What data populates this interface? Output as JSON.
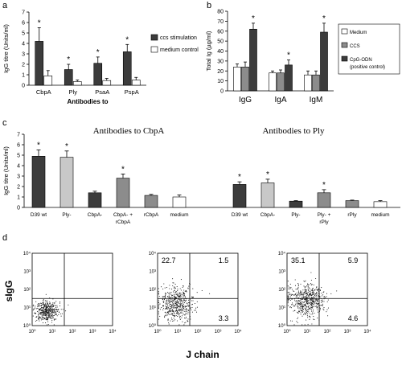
{
  "panel_labels": {
    "a": "a",
    "b": "b",
    "c": "c",
    "d": "d"
  },
  "colors": {
    "dark": "#3c3c3c",
    "white": "#ffffff",
    "light_gray": "#c8c8c8",
    "mid_gray": "#8c8c8c",
    "dots": "#1a1a1a"
  },
  "legend_a": {
    "item1": "ccs stimulation",
    "item2": "medium control"
  },
  "legend_b": {
    "item1": "Medium",
    "item2": "CCS",
    "item3": "CpG-ODN",
    "item4": "(positive control)"
  },
  "panel_c": {
    "title_left": "Antibodies to CbpA",
    "title_right": "Antibodies to Ply"
  },
  "panel_d": {
    "ylabel": "sIgG",
    "xlabel": "J chain"
  },
  "chart_data": [
    {
      "type": "bar",
      "panel": "a",
      "ylabel": "IgG titre (Units/ml)",
      "xlabel": "Antibodies to",
      "categories": [
        "CbpA",
        "Ply",
        "PsaA",
        "PspA"
      ],
      "ylim": [
        0,
        7
      ],
      "yticks": [
        "0",
        "1",
        "2",
        "3",
        "4",
        "5",
        "6",
        "7"
      ],
      "series": [
        {
          "name": "ccs stimulation",
          "values": [
            4.2,
            1.5,
            2.1,
            3.2
          ],
          "errors": [
            1.3,
            0.5,
            0.6,
            0.7
          ],
          "color": "#3c3c3c"
        },
        {
          "name": "medium control",
          "values": [
            0.9,
            0.35,
            0.45,
            0.5
          ],
          "errors": [
            0.5,
            0.15,
            0.2,
            0.25
          ],
          "color": "#ffffff"
        }
      ],
      "significance": [
        0,
        1,
        2,
        3
      ]
    },
    {
      "type": "bar",
      "panel": "b",
      "ylabel": "Total Ig (µg/ml)",
      "categories": [
        "IgG",
        "IgA",
        "IgM"
      ],
      "ylim": [
        0,
        80
      ],
      "yticks": [
        "0",
        "10",
        "20",
        "30",
        "40",
        "50",
        "60",
        "70",
        "80"
      ],
      "series": [
        {
          "name": "Medium",
          "values": [
            24,
            18,
            16
          ],
          "errors": [
            3,
            2,
            4
          ],
          "color": "#ffffff"
        },
        {
          "name": "CCS",
          "values": [
            24,
            18,
            16
          ],
          "errors": [
            5,
            3,
            4
          ],
          "color": "#8c8c8c"
        },
        {
          "name": "CpG-ODN (positive control)",
          "values": [
            62,
            26,
            59
          ],
          "errors": [
            6,
            5,
            9
          ],
          "color": "#3c3c3c"
        }
      ],
      "significance": [
        0,
        1,
        2
      ]
    },
    {
      "type": "bar",
      "panel": "c",
      "ylabel": "IgG titre (Units/ml)",
      "ylim": [
        0,
        7
      ],
      "yticks": [
        "0",
        "1",
        "2",
        "3",
        "4",
        "5",
        "6",
        "7"
      ],
      "groups": [
        {
          "title": "Antibodies to CbpA",
          "categories": [
            "D39 wt",
            "Ply-",
            "CbpA-",
            "CbpA- + rCbpA",
            "rCbpA",
            "medium"
          ],
          "values": [
            4.9,
            4.8,
            1.4,
            2.8,
            1.15,
            1.0
          ],
          "errors": [
            0.6,
            0.6,
            0.15,
            0.4,
            0.1,
            0.2
          ],
          "colors": [
            "#3c3c3c",
            "#c8c8c8",
            "#3c3c3c",
            "#8c8c8c",
            "#8c8c8c",
            "#ffffff"
          ],
          "significance": [
            0,
            1,
            3
          ]
        },
        {
          "title": "Antibodies to Ply",
          "categories": [
            "D39 wt",
            "CbpA-",
            "Ply-",
            "Ply- + rPly",
            "rPly",
            "medium"
          ],
          "values": [
            2.2,
            2.35,
            0.6,
            1.4,
            0.65,
            0.55
          ],
          "errors": [
            0.25,
            0.35,
            0.05,
            0.3,
            0.05,
            0.1
          ],
          "colors": [
            "#3c3c3c",
            "#c8c8c8",
            "#3c3c3c",
            "#8c8c8c",
            "#8c8c8c",
            "#ffffff"
          ],
          "significance": [
            0,
            1,
            3
          ]
        }
      ]
    },
    {
      "type": "scatter",
      "panel": "d",
      "ylabel": "sIgG",
      "xlabel": "J chain",
      "axis_ticks": [
        "10⁰",
        "10¹",
        "10²",
        "10³",
        "10⁴"
      ],
      "plots": [
        {
          "quadrants": {
            "ul": "",
            "ur": "",
            "lr": ""
          },
          "cluster": {
            "log_x": 0.75,
            "log_y": 0.8,
            "spread": 0.3,
            "n": 420
          }
        },
        {
          "quadrants": {
            "ul": "22.7",
            "ur": "1.5",
            "lr": "3.3"
          },
          "cluster": {
            "log_x": 0.9,
            "log_y": 1.2,
            "spread": 0.45,
            "n": 520
          }
        },
        {
          "quadrants": {
            "ul": "35.1",
            "ur": "5.9",
            "lr": "4.6"
          },
          "cluster": {
            "log_x": 1.0,
            "log_y": 1.4,
            "spread": 0.45,
            "n": 560
          }
        }
      ]
    }
  ]
}
